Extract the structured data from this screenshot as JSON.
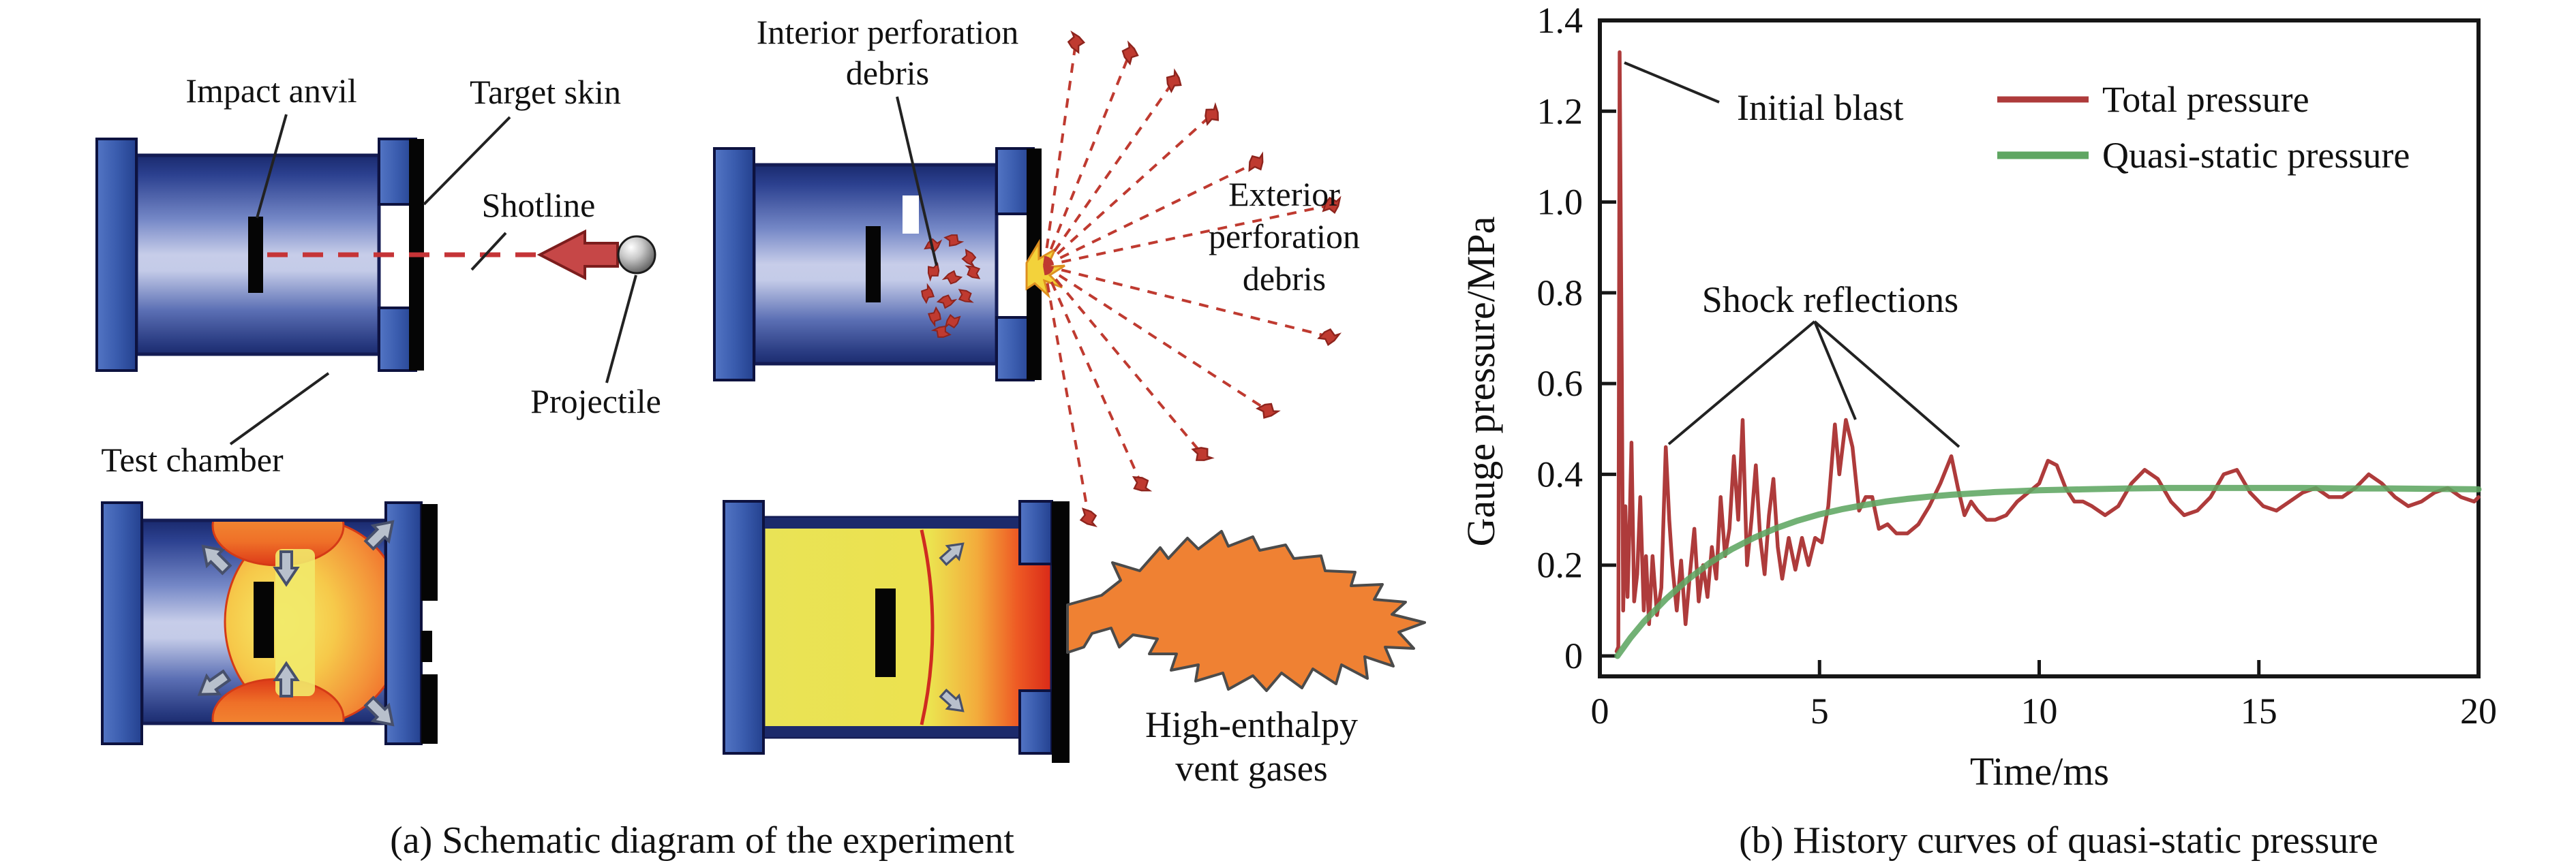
{
  "figure": {
    "panel_a": {
      "caption": "(a) Schematic diagram of the experiment",
      "labels": {
        "impact_anvil": "Impact anvil",
        "target_skin": "Target skin",
        "shotline": "Shotline",
        "projectile": "Projectile",
        "test_chamber": "Test chamber",
        "interior_debris_line1": "Interior perforation",
        "interior_debris_line2": "debris",
        "exterior_debris_line1": "Exterior",
        "exterior_debris_line2": "perforation",
        "exterior_debris_line3": "debris",
        "vent_gases_line1": "High-enthalpy",
        "vent_gases_line2": "vent gases"
      }
    },
    "panel_b": {
      "caption": "(b) History curves of quasi-static pressure",
      "annotations": {
        "initial_blast": "Initial blast",
        "shock_reflections": "Shock reflections"
      }
    }
  },
  "chart_data": {
    "type": "line",
    "title": "",
    "xlabel": "Time/ms",
    "ylabel": "Gauge pressure/MPa",
    "xlim": [
      0,
      20
    ],
    "ylim": [
      0,
      1.4
    ],
    "grid": false,
    "legend_position": "top-right-inside",
    "x_tick_values": [
      0,
      5,
      10,
      15,
      20
    ],
    "x_tick_labels": [
      "0",
      "5",
      "10",
      "15",
      "20"
    ],
    "y_tick_values": [
      0,
      0.2,
      0.4,
      0.6,
      0.8,
      1.0,
      1.2,
      1.4
    ],
    "y_tick_labels": [
      "0",
      "0.2",
      "0.4",
      "0.6",
      "0.8",
      "1.0",
      "1.2",
      "1.4"
    ],
    "series": [
      {
        "name": "Total pressure",
        "color": "#ae3b3b",
        "width": 5.5,
        "x": [
          0.38,
          0.42,
          0.45,
          0.5,
          0.53,
          0.58,
          0.63,
          0.68,
          0.72,
          0.78,
          0.85,
          0.92,
          1.0,
          1.05,
          1.12,
          1.2,
          1.3,
          1.4,
          1.5,
          1.58,
          1.65,
          1.75,
          1.85,
          1.95,
          2.05,
          2.15,
          2.25,
          2.35,
          2.45,
          2.55,
          2.65,
          2.75,
          2.85,
          2.95,
          3.05,
          3.15,
          3.25,
          3.35,
          3.45,
          3.55,
          3.65,
          3.75,
          3.85,
          3.95,
          4.05,
          4.15,
          4.3,
          4.45,
          4.6,
          4.75,
          4.9,
          5.05,
          5.2,
          5.35,
          5.45,
          5.6,
          5.75,
          5.9,
          6.05,
          6.2,
          6.35,
          6.55,
          6.75,
          7.0,
          7.25,
          7.5,
          7.75,
          8.0,
          8.15,
          8.3,
          8.45,
          8.6,
          8.8,
          9.0,
          9.25,
          9.5,
          9.75,
          10.0,
          10.2,
          10.4,
          10.6,
          10.8,
          11.0,
          11.2,
          11.5,
          11.8,
          12.1,
          12.4,
          12.7,
          13.0,
          13.3,
          13.6,
          13.9,
          14.2,
          14.5,
          14.8,
          15.1,
          15.4,
          15.7,
          16.0,
          16.3,
          16.6,
          16.9,
          17.2,
          17.5,
          17.8,
          18.1,
          18.4,
          18.7,
          19.0,
          19.3,
          19.6,
          19.9,
          20.0
        ],
        "y": [
          0.01,
          0.02,
          1.33,
          0.62,
          0.1,
          0.33,
          0.13,
          0.3,
          0.47,
          0.12,
          0.18,
          0.35,
          0.1,
          0.22,
          0.07,
          0.22,
          0.09,
          0.15,
          0.46,
          0.3,
          0.2,
          0.1,
          0.21,
          0.07,
          0.18,
          0.28,
          0.12,
          0.2,
          0.13,
          0.24,
          0.17,
          0.35,
          0.22,
          0.28,
          0.44,
          0.3,
          0.52,
          0.2,
          0.3,
          0.42,
          0.26,
          0.18,
          0.31,
          0.39,
          0.24,
          0.17,
          0.26,
          0.19,
          0.26,
          0.2,
          0.26,
          0.25,
          0.33,
          0.51,
          0.4,
          0.52,
          0.46,
          0.32,
          0.35,
          0.35,
          0.28,
          0.29,
          0.27,
          0.27,
          0.29,
          0.33,
          0.38,
          0.44,
          0.37,
          0.31,
          0.34,
          0.32,
          0.3,
          0.3,
          0.31,
          0.34,
          0.36,
          0.38,
          0.43,
          0.42,
          0.37,
          0.34,
          0.34,
          0.33,
          0.31,
          0.33,
          0.38,
          0.41,
          0.39,
          0.34,
          0.31,
          0.32,
          0.35,
          0.4,
          0.41,
          0.36,
          0.33,
          0.32,
          0.34,
          0.36,
          0.37,
          0.35,
          0.35,
          0.37,
          0.4,
          0.38,
          0.35,
          0.33,
          0.34,
          0.36,
          0.37,
          0.35,
          0.34,
          0.35
        ]
      },
      {
        "name": "Quasi-static pressure",
        "color": "#5fa662",
        "width": 9,
        "x": [
          0.4,
          0.7,
          1.0,
          1.5,
          2.0,
          2.5,
          3.0,
          3.5,
          4.0,
          4.5,
          5.0,
          5.5,
          6.0,
          6.5,
          7.0,
          7.5,
          8.0,
          8.5,
          9.0,
          9.5,
          10.0,
          11.0,
          12.0,
          13.0,
          14.0,
          15.0,
          16.0,
          17.0,
          18.0,
          19.0,
          20.0
        ],
        "y": [
          0.0,
          0.04,
          0.075,
          0.125,
          0.168,
          0.205,
          0.235,
          0.26,
          0.281,
          0.298,
          0.312,
          0.323,
          0.332,
          0.34,
          0.346,
          0.351,
          0.355,
          0.358,
          0.361,
          0.363,
          0.365,
          0.367,
          0.369,
          0.37,
          0.37,
          0.37,
          0.37,
          0.369,
          0.369,
          0.368,
          0.367
        ]
      }
    ],
    "annotated_peaks": {
      "initial_blast_peak": {
        "t": 0.45,
        "p": 1.33
      },
      "shock_reflection_peaks": [
        {
          "t": 1.5,
          "p": 0.46
        },
        {
          "t": 5.6,
          "p": 0.52
        },
        {
          "t": 8.0,
          "p": 0.44
        }
      ]
    }
  },
  "colors": {
    "total_pressure": "#ae3b3b",
    "quasi_static_pressure": "#5fa662",
    "axis_frame": "#161616",
    "chamber_flange_blue": "#3a5cae",
    "chamber_body_light": "#c7cde9",
    "chamber_body_dark": "#1a2a6e",
    "anvil_black": "#050505",
    "shotline_red": "#c53437",
    "debris_red": "#bf3a30",
    "fireball_orange": "#ef5a22",
    "fireball_yellow": "#f2e96a",
    "flame_orange": "#ef8133",
    "gray_arrow": "#b8c0cc"
  }
}
